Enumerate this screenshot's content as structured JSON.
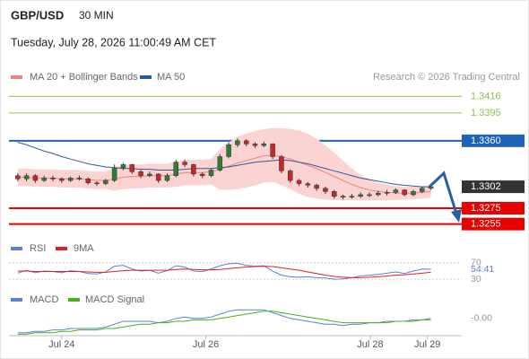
{
  "chart_data": [
    {
      "type": "candlestick",
      "title": "GBP/USD",
      "subtitle": "30 MIN",
      "date": "Tuesday, July 28, 2026 11:00:49 AM CET",
      "source": "Research © 2026 Trading Central",
      "up_color": "#2e7d32",
      "down_color": "#c62828",
      "open": [
        1.3316,
        1.3312,
        1.3316,
        1.331,
        1.3313,
        1.3312,
        1.331,
        1.3313,
        1.3312,
        1.3307,
        1.3306,
        1.331,
        1.3326,
        1.333,
        1.3321,
        1.3316,
        1.3318,
        1.331,
        1.3316,
        1.3333,
        1.333,
        1.3318,
        1.3316,
        1.3323,
        1.334,
        1.3355,
        1.336,
        1.3356,
        1.3354,
        1.3356,
        1.334,
        1.3322,
        1.331,
        1.3306,
        1.3304,
        1.33,
        1.3296,
        1.329,
        1.3289,
        1.329,
        1.3292,
        1.3292,
        1.3294,
        1.3295,
        1.3298,
        1.3292,
        1.3296,
        1.33
      ],
      "high": [
        1.3319,
        1.3319,
        1.3318,
        1.3316,
        1.3316,
        1.3314,
        1.3315,
        1.3316,
        1.3314,
        1.3309,
        1.3312,
        1.333,
        1.3332,
        1.3331,
        1.3323,
        1.3321,
        1.3319,
        1.3319,
        1.3336,
        1.3336,
        1.3331,
        1.332,
        1.3325,
        1.3343,
        1.3358,
        1.3363,
        1.3362,
        1.3358,
        1.3359,
        1.3357,
        1.3342,
        1.3324,
        1.3312,
        1.3308,
        1.3306,
        1.3302,
        1.3298,
        1.3292,
        1.3293,
        1.3295,
        1.3295,
        1.3297,
        1.3298,
        1.33,
        1.3299,
        1.3298,
        1.3302,
        1.3305
      ],
      "low": [
        1.3309,
        1.3309,
        1.3307,
        1.3308,
        1.3309,
        1.3307,
        1.3308,
        1.331,
        1.3305,
        1.3303,
        1.3304,
        1.3308,
        1.3323,
        1.3318,
        1.3313,
        1.3314,
        1.3307,
        1.3308,
        1.3314,
        1.3327,
        1.3315,
        1.3313,
        1.3314,
        1.3321,
        1.3338,
        1.3352,
        1.3353,
        1.3351,
        1.3352,
        1.3337,
        1.3319,
        1.3307,
        1.3303,
        1.3301,
        1.3297,
        1.3293,
        1.3287,
        1.3286,
        1.3287,
        1.3288,
        1.3289,
        1.329,
        1.3291,
        1.3293,
        1.329,
        1.329,
        1.3294,
        1.3298
      ],
      "close": [
        1.3312,
        1.3316,
        1.331,
        1.3313,
        1.3312,
        1.331,
        1.3313,
        1.3312,
        1.3307,
        1.3306,
        1.331,
        1.3326,
        1.333,
        1.3321,
        1.3316,
        1.3318,
        1.331,
        1.3316,
        1.3333,
        1.333,
        1.3318,
        1.3316,
        1.3323,
        1.334,
        1.3355,
        1.336,
        1.3356,
        1.3354,
        1.3356,
        1.334,
        1.3322,
        1.331,
        1.3306,
        1.3304,
        1.33,
        1.3296,
        1.329,
        1.3289,
        1.329,
        1.3292,
        1.3292,
        1.3294,
        1.3295,
        1.3298,
        1.3292,
        1.3296,
        1.33,
        1.3302
      ],
      "series": [
        {
          "name": "MA 20 + Bollinger Bands",
          "color": "#f08080",
          "band_color": "#fbd3d3",
          "values": [
            1.3314,
            1.3314,
            1.3313,
            1.3313,
            1.3313,
            1.3312,
            1.3312,
            1.3312,
            1.3311,
            1.331,
            1.331,
            1.3312,
            1.3314,
            1.3315,
            1.3315,
            1.3316,
            1.3316,
            1.3316,
            1.3318,
            1.332,
            1.332,
            1.332,
            1.3321,
            1.3324,
            1.3328,
            1.3332,
            1.3335,
            1.3338,
            1.3341,
            1.3342,
            1.334,
            1.3337,
            1.3333,
            1.3329,
            1.3325,
            1.332,
            1.3315,
            1.331,
            1.3305,
            1.3301,
            1.3298,
            1.3296,
            1.3295,
            1.3294,
            1.3294,
            1.3294,
            1.3295,
            1.3296
          ],
          "upper": [
            1.3325,
            1.3325,
            1.3324,
            1.3324,
            1.3324,
            1.3323,
            1.3323,
            1.3323,
            1.3322,
            1.3321,
            1.3321,
            1.3327,
            1.3329,
            1.333,
            1.333,
            1.3331,
            1.3331,
            1.3331,
            1.3334,
            1.3336,
            1.3336,
            1.3336,
            1.3337,
            1.335,
            1.3358,
            1.3365,
            1.3369,
            1.3372,
            1.3375,
            1.3376,
            1.3376,
            1.3375,
            1.3373,
            1.3369,
            1.3363,
            1.3354,
            1.3345,
            1.3335,
            1.3325,
            1.3317,
            1.3311,
            1.3307,
            1.3305,
            1.3303,
            1.3302,
            1.3302,
            1.3303,
            1.3304
          ],
          "lower": [
            1.3303,
            1.3303,
            1.3302,
            1.3302,
            1.3302,
            1.3301,
            1.3301,
            1.3301,
            1.33,
            1.3299,
            1.3299,
            1.3297,
            1.3299,
            1.33,
            1.33,
            1.3301,
            1.3301,
            1.3301,
            1.3302,
            1.3304,
            1.3304,
            1.3304,
            1.3305,
            1.3298,
            1.3298,
            1.3299,
            1.3301,
            1.3304,
            1.3307,
            1.3308,
            1.3304,
            1.3299,
            1.3293,
            1.3289,
            1.3287,
            1.3286,
            1.3285,
            1.3285,
            1.3285,
            1.3285,
            1.3285,
            1.3285,
            1.3285,
            1.3285,
            1.3286,
            1.3286,
            1.3287,
            1.3288
          ]
        },
        {
          "name": "MA 50",
          "color": "#2e5a9c",
          "values": [
            1.3358,
            1.3355,
            1.3351,
            1.3347,
            1.3344,
            1.334,
            1.3337,
            1.3334,
            1.3331,
            1.3329,
            1.3327,
            1.3326,
            1.3325,
            1.3325,
            1.3324,
            1.3324,
            1.3323,
            1.3323,
            1.3323,
            1.3324,
            1.3325,
            1.3325,
            1.3325,
            1.3326,
            1.3327,
            1.3329,
            1.3331,
            1.3333,
            1.3334,
            1.3335,
            1.3336,
            1.3335,
            1.3333,
            1.3331,
            1.3328,
            1.3325,
            1.3322,
            1.3319,
            1.3316,
            1.3313,
            1.3311,
            1.3309,
            1.3307,
            1.3305,
            1.3304,
            1.3303,
            1.3302,
            1.3302
          ]
        }
      ],
      "levels": [
        {
          "value": 1.3416,
          "color": "#8bc34a"
        },
        {
          "value": 1.3395,
          "color": "#8bc34a"
        },
        {
          "value": 1.336,
          "label": "1.3360",
          "color": "#1f63b8"
        },
        {
          "value": 1.3275,
          "color": "#e60000"
        },
        {
          "value": 1.3255,
          "color": "#e60000"
        }
      ],
      "xlim": [
        -1,
        50
      ],
      "xticks": [
        {
          "value": 5,
          "label": "Jul 24"
        },
        {
          "value": 21.4,
          "label": "Jul 26"
        },
        {
          "value": 40.1,
          "label": "Jul 28"
        },
        {
          "value": 46.6,
          "label": "Jul 29"
        }
      ],
      "ylim": [
        1.3241,
        1.343
      ]
    },
    {
      "type": "line",
      "series": [
        {
          "name": "RSI",
          "color": "#5b7fd4",
          "values": [
            45,
            52,
            46,
            50,
            49,
            46,
            51,
            49,
            44,
            43,
            48,
            62,
            64,
            55,
            50,
            52,
            45,
            51,
            63,
            60,
            50,
            49,
            55,
            63,
            68,
            69,
            64,
            62,
            63,
            50,
            40,
            36,
            35,
            36,
            34,
            33,
            30,
            31,
            34,
            38,
            40,
            42,
            45,
            48,
            44,
            50,
            55,
            54.41
          ]
        },
        {
          "name": "9MA",
          "color": "#e02020",
          "values": [
            50,
            50,
            49,
            49,
            49,
            49,
            49,
            49,
            48,
            47,
            47,
            49,
            51,
            52,
            52,
            52,
            52,
            52,
            54,
            55,
            54,
            53,
            53,
            54,
            56,
            58,
            60,
            61,
            62,
            61,
            58,
            55,
            52,
            48,
            44,
            40,
            37,
            35,
            34,
            34,
            35,
            36,
            38,
            40,
            41,
            43,
            45,
            47
          ]
        }
      ],
      "ylim": [
        15,
        83
      ],
      "yticks": [
        30,
        70
      ]
    },
    {
      "type": "line",
      "series": [
        {
          "name": "MACD",
          "color": "#5b7fd4",
          "values": [
            -0.0012,
            -0.0012,
            -0.0011,
            -0.0011,
            -0.001,
            -0.001,
            -0.0009,
            -0.0009,
            -0.0009,
            -0.0009,
            -0.0008,
            -0.0006,
            -0.0004,
            -0.0004,
            -0.0004,
            -0.0004,
            -0.0005,
            -0.0004,
            -0.0002,
            -0.0001,
            -0.0002,
            -0.0002,
            -0.0001,
            0.0001,
            0.0003,
            0.0004,
            0.0004,
            0.0004,
            0.0004,
            0.0002,
            0,
            -0.0002,
            -0.0003,
            -0.0004,
            -0.0005,
            -0.0006,
            -0.0006,
            -0.0007,
            -0.0006,
            -0.0006,
            -0.0005,
            -0.0005,
            -0.0004,
            -0.0004,
            -0.0004,
            -0.0003,
            -0.0003,
            -0.0002
          ]
        },
        {
          "name": "MACD Signal",
          "color": "#4caf1a",
          "values": [
            -0.0013,
            -0.0013,
            -0.0012,
            -0.0012,
            -0.0012,
            -0.0011,
            -0.0011,
            -0.001,
            -0.001,
            -0.001,
            -0.0009,
            -0.0009,
            -0.0008,
            -0.0007,
            -0.0006,
            -0.0006,
            -0.0005,
            -0.0005,
            -0.0004,
            -0.0004,
            -0.0003,
            -0.0003,
            -0.0003,
            -0.0002,
            -0.0001,
            0,
            0.0001,
            0.0002,
            0.0003,
            0.0003,
            0.0002,
            0.0001,
            0,
            -0.0001,
            -0.0002,
            -0.0003,
            -0.0004,
            -0.0005,
            -0.0005,
            -0.0005,
            -0.0005,
            -0.0005,
            -0.0005,
            -0.0004,
            -0.0004,
            -0.0004,
            -0.0003,
            -0.0003
          ]
        }
      ],
      "ylim": [
        -0.0014,
        0.0006
      ],
      "yticks": [
        {
          "value": -0.0002,
          "label": "-0.00"
        }
      ]
    }
  ]
}
